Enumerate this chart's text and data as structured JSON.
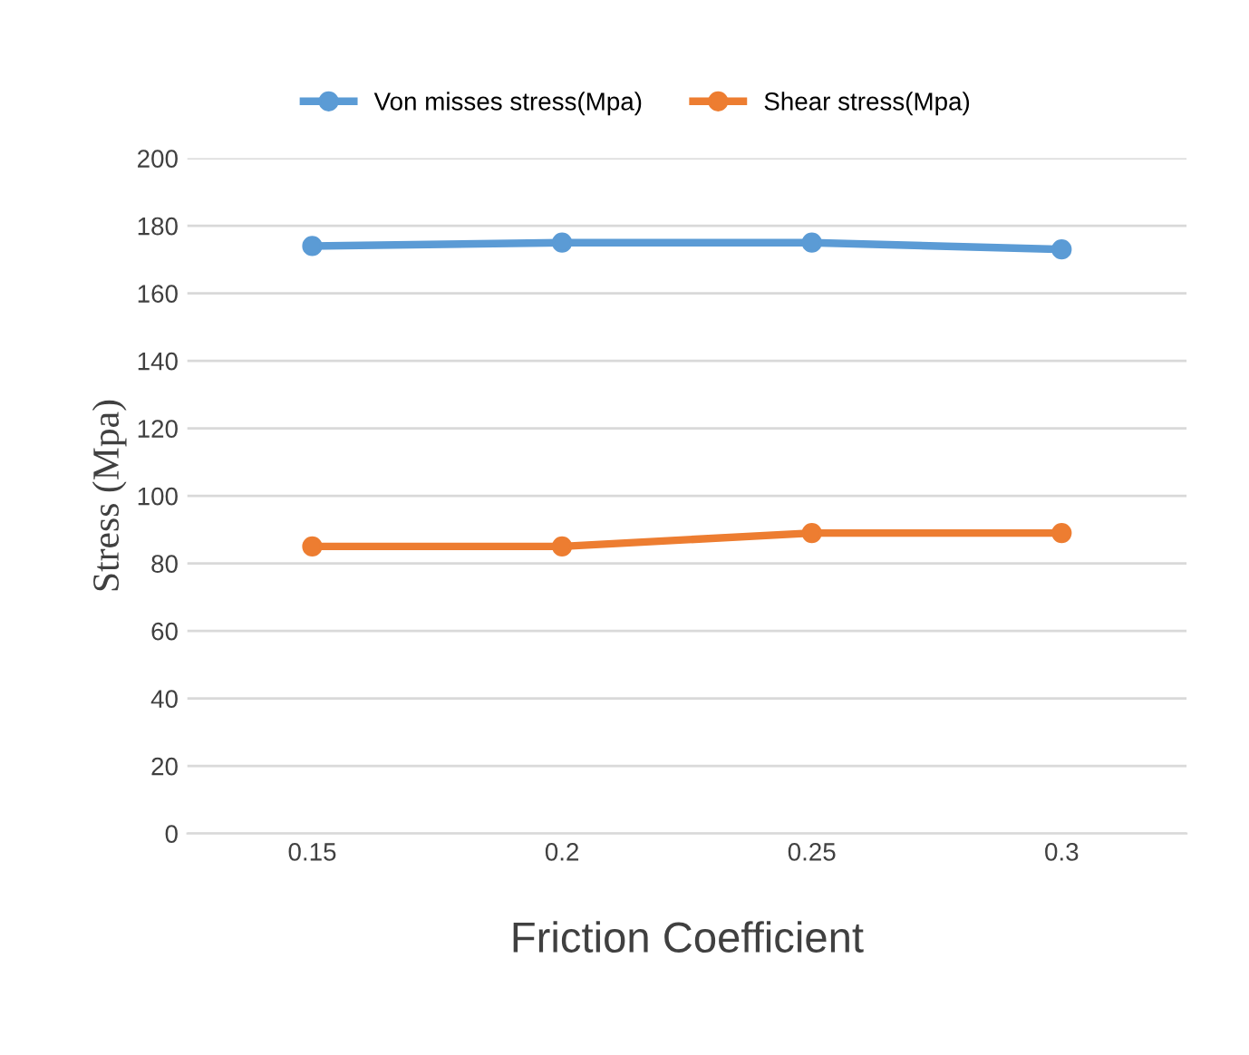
{
  "chart_data": {
    "type": "line",
    "xlabel": "Friction Coefficient",
    "ylabel": "Stress (Mpa)",
    "categories": [
      "0.15",
      "0.2",
      "0.25",
      "0.3"
    ],
    "series": [
      {
        "name": "Von misses stress(Mpa)",
        "color": "#5b9bd5",
        "values": [
          174,
          175,
          175,
          173
        ]
      },
      {
        "name": "Shear stress(Mpa)",
        "color": "#ed7d31",
        "values": [
          85,
          85,
          89,
          89
        ]
      }
    ],
    "ylim": [
      0,
      200
    ],
    "yticks": [
      0,
      20,
      40,
      60,
      80,
      100,
      120,
      140,
      160,
      180,
      200
    ],
    "grid": "y",
    "legend": "top",
    "marker": "circle",
    "line_style": "solid"
  }
}
